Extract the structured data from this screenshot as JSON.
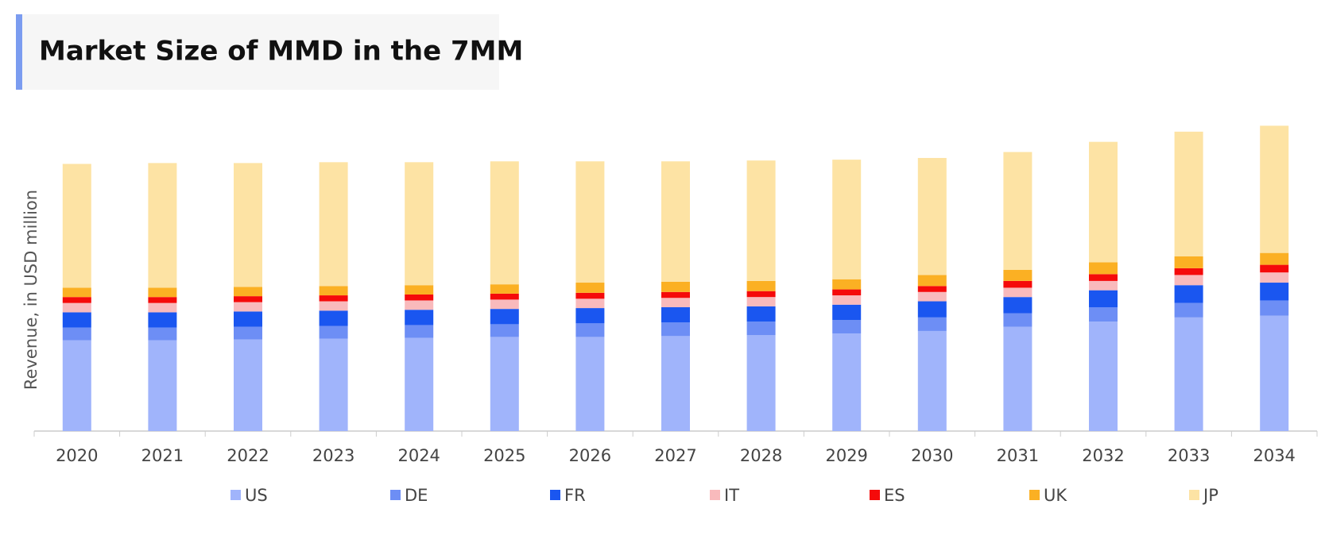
{
  "chart_data": {
    "type": "stacked-bar",
    "title": "Market Size of MMD in the 7MM",
    "y_label": "Revenue, in USD million",
    "categories": [
      "2020",
      "2021",
      "2022",
      "2023",
      "2024",
      "2025",
      "2026",
      "2027",
      "2028",
      "2029",
      "2030",
      "2031",
      "2032",
      "2033",
      "2034"
    ],
    "ylim": [
      0,
      380
    ],
    "series": [
      {
        "name": "US",
        "color": "#a0b4fb",
        "values": [
          107,
          107,
          108,
          109,
          110,
          111,
          111,
          112,
          113,
          115,
          118,
          123,
          129,
          134,
          136
        ]
      },
      {
        "name": "DE",
        "color": "#6d8ef5",
        "values": [
          15,
          15,
          15,
          15,
          15,
          15,
          16,
          16,
          16,
          16,
          16,
          16,
          17,
          17,
          18
        ]
      },
      {
        "name": "FR",
        "color": "#1a56f0",
        "values": [
          18,
          18,
          18,
          18,
          18,
          18,
          18,
          18,
          18,
          18,
          19,
          19,
          20,
          21,
          21
        ]
      },
      {
        "name": "IT",
        "color": "#f9babc",
        "values": [
          11,
          11,
          11,
          11,
          11,
          11,
          11,
          11,
          11,
          11,
          11,
          11,
          11,
          12,
          12
        ]
      },
      {
        "name": "ES",
        "color": "#f50a0a",
        "values": [
          7,
          7,
          7,
          7,
          7,
          7,
          7,
          7,
          7,
          7,
          7,
          8,
          8,
          8,
          9
        ]
      },
      {
        "name": "UK",
        "color": "#fbb023",
        "values": [
          11,
          11,
          11,
          11,
          11,
          11,
          12,
          12,
          12,
          12,
          13,
          13,
          14,
          14,
          14
        ]
      },
      {
        "name": "JP",
        "color": "#fde3a4",
        "values": [
          146,
          147,
          146,
          146,
          145,
          145,
          143,
          142,
          142,
          141,
          138,
          139,
          142,
          147,
          150
        ]
      }
    ]
  }
}
